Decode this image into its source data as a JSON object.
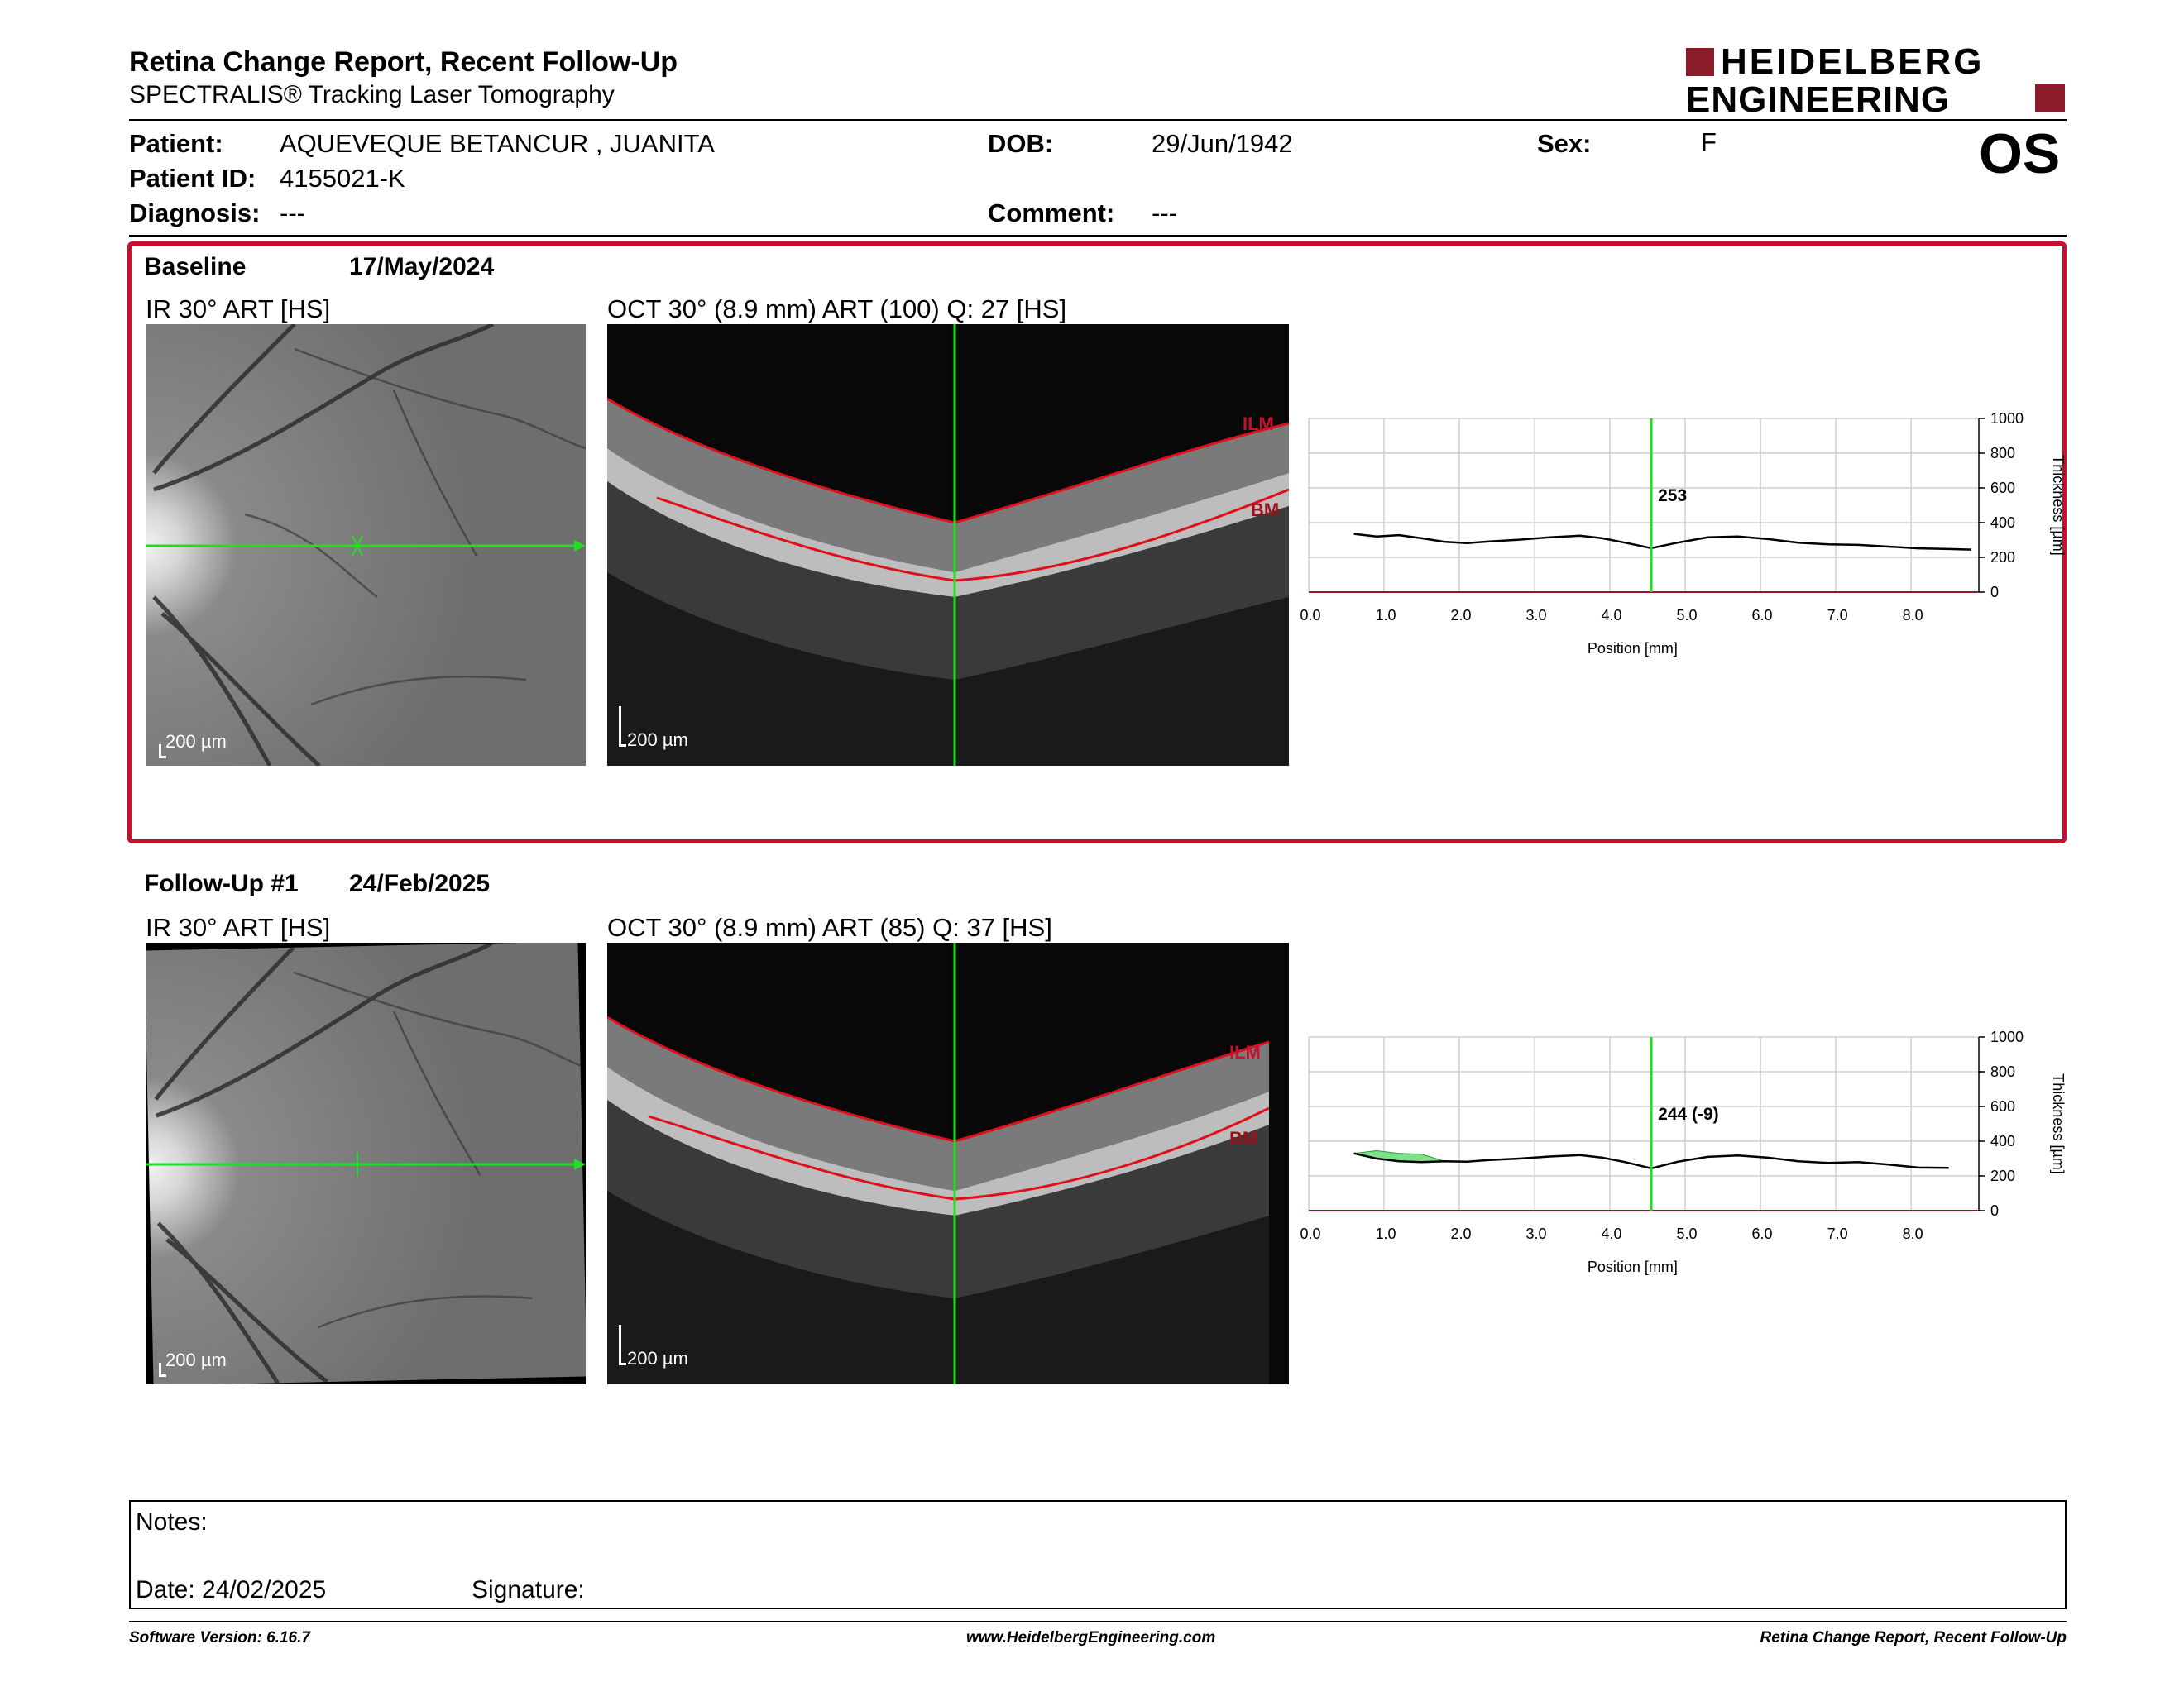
{
  "header": {
    "title": "Retina Change Report, Recent Follow-Up",
    "subtitle": "SPECTRALIS® Tracking Laser Tomography",
    "logo_line1": "HEIDELBERG",
    "logo_line2": "ENGINEERING",
    "eye": "OS"
  },
  "patient": {
    "patient_label": "Patient:",
    "patient_value": "AQUEVEQUE BETANCUR , JUANITA",
    "id_label": "Patient ID:",
    "id_value": "4155021-K",
    "diagnosis_label": "Diagnosis:",
    "diagnosis_value": "---",
    "dob_label": "DOB:",
    "dob_value": "29/Jun/1942",
    "comment_label": "Comment:",
    "comment_value": "---",
    "sex_label": "Sex:",
    "sex_value": "F"
  },
  "baseline": {
    "label": "Baseline",
    "date": "17/May/2024",
    "ir_title": "IR 30° ART [HS]",
    "oct_title": "OCT 30° (8.9 mm) ART (100) Q: 27 [HS]",
    "scale_ir": "200 µm",
    "scale_oct": "200 µm",
    "ilm": "ILM",
    "bm": "BM"
  },
  "followup": {
    "label": "Follow-Up #1",
    "date": "24/Feb/2025",
    "ir_title": "IR 30° ART [HS]",
    "oct_title": "OCT 30° (8.9 mm) ART (85) Q: 37 [HS]",
    "scale_ir": "200 µm",
    "scale_oct": "200 µm",
    "ilm": "ILM",
    "bm": "BM"
  },
  "chart_data": [
    {
      "type": "line",
      "xlabel": "Position [mm]",
      "ylabel": "Thickness [µm]",
      "xlim": [
        0,
        8.9
      ],
      "ylim": [
        0,
        1000
      ],
      "xticks": [
        "0.0",
        "1.0",
        "2.0",
        "3.0",
        "4.0",
        "5.0",
        "6.0",
        "7.0",
        "8.0"
      ],
      "yticks": [
        "0",
        "200",
        "400",
        "600",
        "800",
        "1000"
      ],
      "cursor_x": 4.55,
      "cursor_label": "253",
      "series": [
        {
          "x": [
            0.6,
            0.9,
            1.2,
            1.5,
            1.8,
            2.1,
            2.4,
            2.8,
            3.2,
            3.6,
            3.9,
            4.2,
            4.55,
            4.9,
            5.3,
            5.7,
            6.1,
            6.5,
            6.9,
            7.3,
            7.7,
            8.1,
            8.5,
            8.8
          ],
          "y": [
            335,
            320,
            328,
            310,
            290,
            282,
            292,
            302,
            315,
            325,
            310,
            285,
            253,
            285,
            315,
            320,
            305,
            285,
            275,
            272,
            262,
            252,
            248,
            245
          ]
        }
      ]
    },
    {
      "type": "line",
      "xlabel": "Position [mm]",
      "ylabel": "Thickness [µm]",
      "xlim": [
        0,
        8.9
      ],
      "ylim": [
        0,
        1000
      ],
      "xticks": [
        "0.0",
        "1.0",
        "2.0",
        "3.0",
        "4.0",
        "5.0",
        "6.0",
        "7.0",
        "8.0"
      ],
      "yticks": [
        "0",
        "200",
        "400",
        "600",
        "800",
        "1000"
      ],
      "cursor_x": 4.55,
      "cursor_label": "244 (-9)",
      "highlight_range": [
        0.8,
        1.8
      ],
      "series": [
        {
          "x": [
            0.6,
            0.9,
            1.2,
            1.5,
            1.8,
            2.1,
            2.4,
            2.8,
            3.2,
            3.6,
            3.9,
            4.2,
            4.55,
            4.9,
            5.3,
            5.7,
            6.1,
            6.5,
            6.9,
            7.3,
            7.7,
            8.1,
            8.5
          ],
          "y": [
            330,
            300,
            285,
            280,
            285,
            282,
            292,
            300,
            312,
            320,
            305,
            280,
            244,
            282,
            310,
            318,
            305,
            285,
            275,
            280,
            265,
            248,
            246
          ]
        }
      ]
    }
  ],
  "notes": {
    "notes_label": "Notes:",
    "date_label": "Date: 24/02/2025",
    "signature_label": "Signature:"
  },
  "footer": {
    "left": "Software Version: 6.16.7",
    "center": "www.HeidelbergEngineering.com",
    "right": "Retina Change Report, Recent Follow-Up"
  },
  "colors": {
    "frame_red": "#c8102e",
    "logo_red": "#8b1a2b",
    "cursor_green": "#22dd22",
    "ilm_red": "#e0101a"
  }
}
